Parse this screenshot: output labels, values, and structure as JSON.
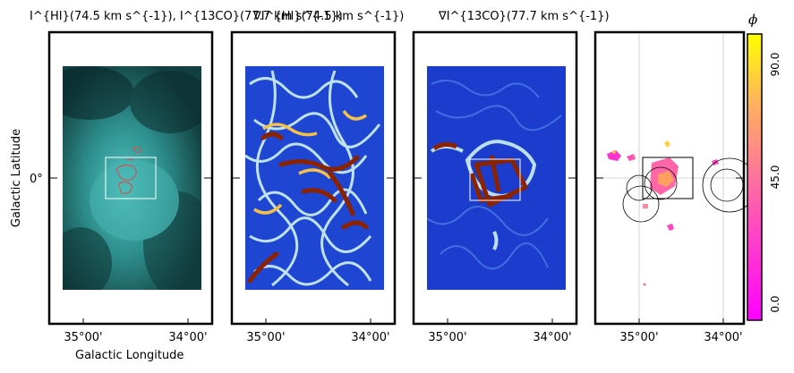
{
  "figure": {
    "panels": [
      {
        "id": "panel-1",
        "title": "I^{HI}(74.5 km s^{-1}), I^{13CO}(77.7 km s^{-1})"
      },
      {
        "id": "panel-2",
        "title": "∇I^{HI}(74.5 km s^{-1})"
      },
      {
        "id": "panel-3",
        "title": "∇I^{13CO}(77.7 km s^{-1})"
      },
      {
        "id": "panel-4",
        "title": ""
      }
    ],
    "x_axis_label": "Galactic Longitude",
    "y_axis_label": "Galactic Latitude",
    "x_ticks": [
      "35°00'",
      "34°00'"
    ],
    "y_ticks": [
      "0°"
    ],
    "colorbar": {
      "label": "ϕ",
      "ticks": [
        "90.0",
        "45.0",
        "0.0"
      ],
      "range": [
        0,
        90
      ],
      "colors": [
        "#ff00ff",
        "#ff66a8",
        "#ffb060",
        "#ffff00"
      ]
    },
    "colors": {
      "panel1_background": "#0f3436",
      "panel1_emission": "#44b8b6",
      "panel1_co_contours": "#d94a4a",
      "gradient_low": "#1c3ccd",
      "gradient_mid": "#bcdff0",
      "gradient_high": "#8b2200"
    }
  }
}
